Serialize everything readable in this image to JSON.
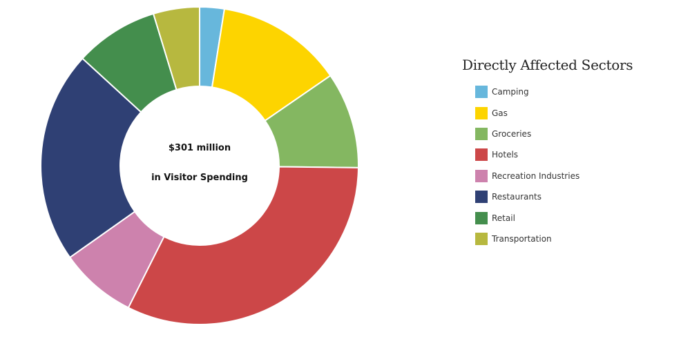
{
  "chart_data": {
    "type": "pie",
    "subtype": "donut",
    "title": "Directly Affected Sectors",
    "center_text": [
      "$301 million",
      "in Visitor Spending"
    ],
    "total": "$301 million",
    "unit": "percent of visitor spending (estimated from slice angles)",
    "categories": [
      "Camping",
      "Gas",
      "Groceries",
      "Hotels",
      "Recreation Industries",
      "Restaurants",
      "Retail",
      "Transportation"
    ],
    "values": [
      2.5,
      12.9,
      9.8,
      32.2,
      7.8,
      21.6,
      8.5,
      4.7
    ],
    "colors": [
      "#67b7dc",
      "#fdd400",
      "#84b761",
      "#cc4748",
      "#cd82ad",
      "#2f4074",
      "#448e4d",
      "#b7b83f"
    ],
    "start_angle_deg": 0,
    "direction": "clockwise",
    "legend_position": "right"
  },
  "legend": {
    "title": "Directly Affected Sectors",
    "items": [
      {
        "label": "Camping",
        "color": "#67b7dc"
      },
      {
        "label": "Gas",
        "color": "#fdd400"
      },
      {
        "label": "Groceries",
        "color": "#84b761"
      },
      {
        "label": "Hotels",
        "color": "#cc4748"
      },
      {
        "label": "Recreation Industries",
        "color": "#cd82ad"
      },
      {
        "label": "Restaurants",
        "color": "#2f4074"
      },
      {
        "label": "Retail",
        "color": "#448e4d"
      },
      {
        "label": "Transportation",
        "color": "#b7b83f"
      }
    ]
  },
  "center": {
    "line1": "$301 million",
    "line2": "in Visitor Spending"
  }
}
